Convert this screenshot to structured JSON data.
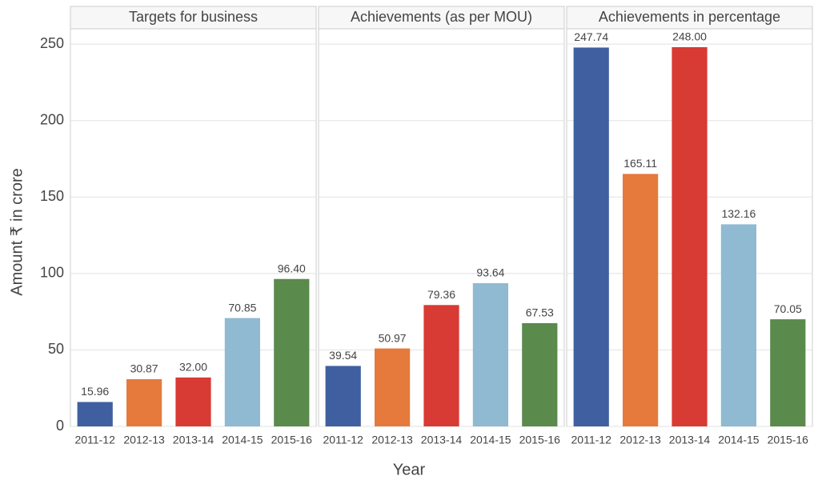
{
  "chart_data": {
    "type": "bar",
    "ylabel": "Amount ₹ in crore",
    "xlabel": "Year",
    "ylim": [
      0,
      260
    ],
    "yticks": [
      0,
      50,
      100,
      150,
      200,
      250
    ],
    "grid": true,
    "colors": [
      "#3f5fa0",
      "#e57a3c",
      "#d83a34",
      "#8fbad2",
      "#5a8a4c"
    ],
    "panels": [
      {
        "title": "Targets for business",
        "categories": [
          "2011-12",
          "2012-13",
          "2013-14",
          "2014-15",
          "2015-16"
        ],
        "values": [
          15.96,
          30.87,
          32,
          70.85,
          96.4
        ],
        "value_labels": [
          "15.96",
          "30.87",
          "32.00",
          "70.85",
          "96.40"
        ]
      },
      {
        "title": "Achievements (as per MOU)",
        "categories": [
          "2011-12",
          "2012-13",
          "2013-14",
          "2014-15",
          "2015-16"
        ],
        "values": [
          39.54,
          50.97,
          79.36,
          93.64,
          67.53
        ],
        "value_labels": [
          "39.54",
          "50.97",
          "79.36",
          "93.64",
          "67.53"
        ]
      },
      {
        "title": "Achievements in percentage",
        "categories": [
          "2011-12",
          "2012-13",
          "2013-14",
          "2014-15",
          "2015-16"
        ],
        "values": [
          247.74,
          165.11,
          248,
          132.16,
          70.05
        ],
        "value_labels": [
          "247.74",
          "165.11",
          "248.00",
          "132.16",
          "70.05"
        ]
      }
    ]
  }
}
